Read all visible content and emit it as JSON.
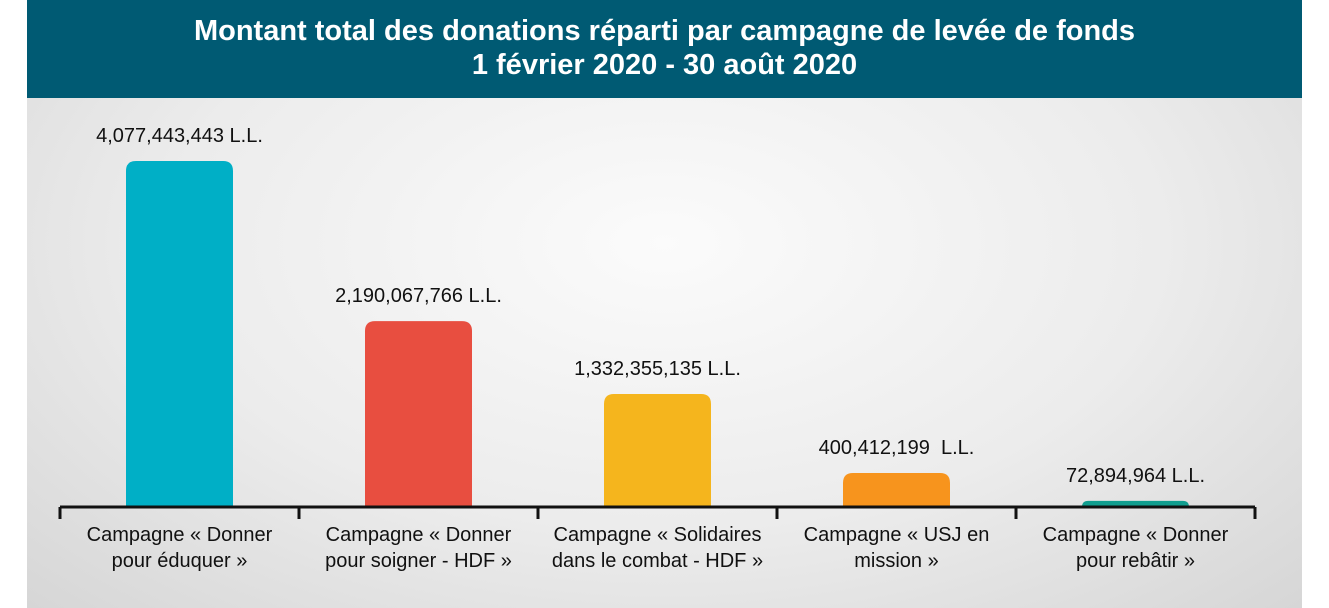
{
  "chart_data": {
    "type": "bar",
    "title": "Montant total des donations réparti par campagne de levée de fonds",
    "subtitle": "1 février 2020 - 30 août 2020",
    "categories": [
      "Campagne « Donner pour éduquer »",
      "Campagne « Donner pour soigner - HDF »",
      "Campagne « Solidaires dans le combat - HDF »",
      "Campagne « USJ en mission »",
      "Campagne « Donner pour rebâtir »"
    ],
    "values": [
      4077443443,
      2190067766,
      1332355135,
      400412199,
      72894964
    ],
    "value_labels": [
      "4,077,443,443 L.L.",
      "2,190,067,766 L.L.",
      "1,332,355,135 L.L.",
      "400,412,199  L.L.",
      "72,894,964 L.L."
    ],
    "colors": [
      "#00afc6",
      "#e84e40",
      "#f5b51d",
      "#f7941d",
      "#109e8f"
    ]
  }
}
